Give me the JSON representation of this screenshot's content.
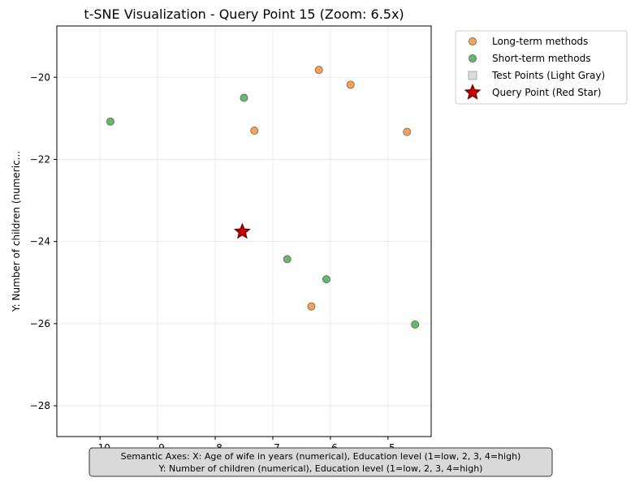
{
  "chart_data": {
    "type": "scatter",
    "title": "t-SNE Visualization - Query Point 15 (Zoom: 6.5x)",
    "xlabel": "",
    "ylabel": "Y: Number of children (numeric...",
    "xlim": [
      -10.75,
      -4.25
    ],
    "ylim": [
      -28.75,
      -18.75
    ],
    "xticks": [
      -10,
      -9,
      -8,
      -7,
      -6,
      -5
    ],
    "xtick_labels": [
      "−10",
      "−9",
      "−8",
      "−7",
      "−6",
      "−5"
    ],
    "yticks": [
      -20,
      -22,
      -24,
      -26,
      -28
    ],
    "ytick_labels": [
      "−20",
      "−22",
      "−24",
      "−26",
      "−28"
    ],
    "grid": true,
    "legend_placement": "outside-upper-right",
    "series": [
      {
        "name": "Long-term methods",
        "marker": "circle",
        "color": "#f4a259",
        "points": [
          {
            "x": -6.2,
            "y": -19.82
          },
          {
            "x": -5.65,
            "y": -20.18
          },
          {
            "x": -7.32,
            "y": -21.3
          },
          {
            "x": -4.67,
            "y": -21.33
          },
          {
            "x": -6.33,
            "y": -25.58
          }
        ]
      },
      {
        "name": "Short-term methods",
        "marker": "circle",
        "color": "#6ab66a",
        "points": [
          {
            "x": -7.5,
            "y": -20.5
          },
          {
            "x": -9.82,
            "y": -21.08
          },
          {
            "x": -6.75,
            "y": -24.43
          },
          {
            "x": -6.07,
            "y": -24.92
          },
          {
            "x": -4.53,
            "y": -26.02
          }
        ]
      },
      {
        "name": "Test Points (Light Gray)",
        "marker": "square",
        "color": "#dcdcdc",
        "points": []
      },
      {
        "name": "Query Point (Red Star)",
        "marker": "star",
        "color": "#cc0000",
        "points": [
          {
            "x": -7.53,
            "y": -23.76
          }
        ]
      }
    ],
    "annotation": {
      "line1": "Semantic Axes: X: Age of wife in years (numerical), Education level (1=low, 2, 3, 4=high)",
      "line2": "Y: Number of children (numerical), Education level (1=low, 2, 3, 4=high)"
    }
  }
}
